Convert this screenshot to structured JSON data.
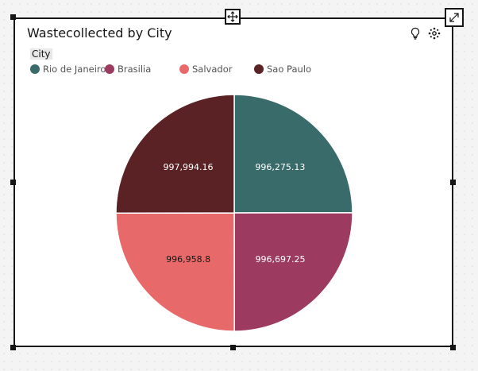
{
  "chart_data": {
    "type": "pie",
    "title": "Wastecollected by City",
    "legend_title": "City",
    "legend_position": "top-left",
    "categories": [
      "Rio de Janeiro",
      "Brasilia",
      "Salvador",
      "Sao Paulo"
    ],
    "values": [
      996275.13,
      996697.25,
      996958.8,
      997994.16
    ],
    "value_labels": [
      "996,275.13",
      "996,697.25",
      "996,958.8",
      "997,994.16"
    ],
    "colors": [
      "#386b69",
      "#9c3a60",
      "#e8696a",
      "#5a2224"
    ]
  },
  "icons": {
    "move": "move-icon",
    "expand": "expand-icon",
    "insight": "lightbulb-icon",
    "settings": "settings-icon"
  }
}
